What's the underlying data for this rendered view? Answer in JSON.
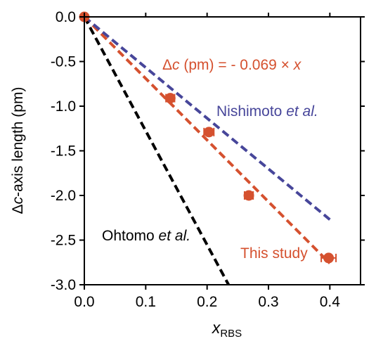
{
  "chart_data": {
    "type": "scatter",
    "xlim": [
      0.0,
      0.45
    ],
    "ylim": [
      -3.0,
      0.0
    ],
    "x_ticks": [
      0.0,
      0.1,
      0.2,
      0.3,
      0.4
    ],
    "y_ticks": [
      0.0,
      -0.5,
      -1.0,
      -1.5,
      -2.0,
      -2.5,
      -3.0
    ],
    "x_tick_labels": [
      "0.0",
      "0.1",
      "0.2",
      "0.3",
      "0.4"
    ],
    "y_tick_labels": [
      "0.0",
      "-0.5",
      "-1.0",
      "-1.5",
      "-2.0",
      "-2.5",
      "-3.0"
    ],
    "xlabel": {
      "main": "x",
      "sub": "RBS"
    },
    "ylabel": {
      "delta": "Δ",
      "italic": "c",
      "rest": "-axis length (pm)"
    },
    "grid": false,
    "series": [
      {
        "name": "This study",
        "kind": "points",
        "color": "#d5512f",
        "x": [
          0.0,
          0.14,
          0.203,
          0.268,
          0.398
        ],
        "y": [
          0.0,
          -0.91,
          -1.29,
          -2.0,
          -2.7
        ],
        "xerr": [
          0.0,
          0.007,
          0.008,
          0.007,
          0.012
        ]
      },
      {
        "name": "This study",
        "kind": "line",
        "style": "dashed",
        "color": "#d5512f",
        "x": [
          0.0,
          0.4
        ],
        "y": [
          0.0,
          -2.76
        ]
      },
      {
        "name": "Nishimoto et al.",
        "kind": "line",
        "style": "dashed",
        "color": "#47469a",
        "x": [
          0.0,
          0.4
        ],
        "y": [
          0.0,
          -2.27
        ]
      },
      {
        "name": "Ohtomo et al.",
        "kind": "line",
        "style": "dashed",
        "color": "#000000",
        "x": [
          0.0,
          0.235
        ],
        "y": [
          0.0,
          -3.0
        ]
      }
    ],
    "annotations": {
      "equation": {
        "delta": "Δ",
        "c": "c",
        "mid": " (pm) = - 0.069 × ",
        "x": "x",
        "color": "#d5512f"
      },
      "nishimoto": {
        "text": "Nishimoto ",
        "etal": "et al.",
        "color": "#47469a"
      },
      "ohtomo": {
        "text": "Ohtomo ",
        "etal": "et al.",
        "color": "#000000"
      },
      "this_study": {
        "text": "This study",
        "color": "#d5512f"
      }
    }
  }
}
